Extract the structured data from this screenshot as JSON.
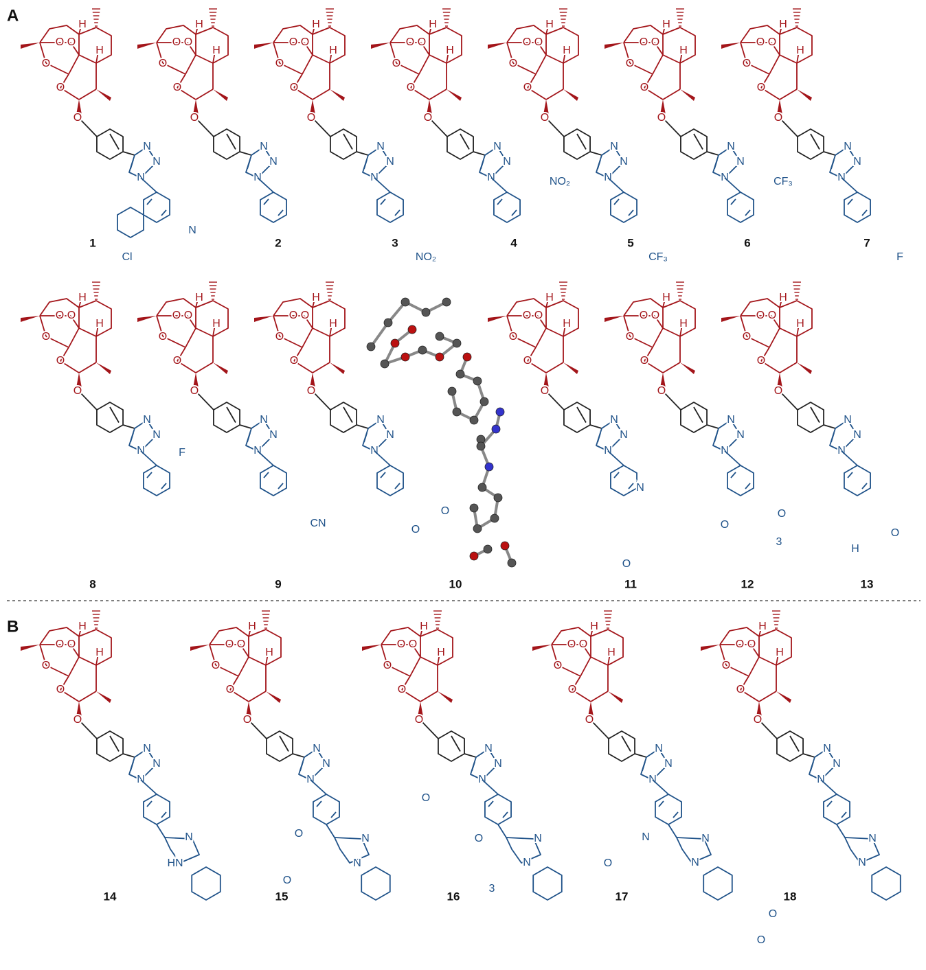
{
  "panels": [
    {
      "label": "A"
    },
    {
      "label": "B"
    }
  ],
  "scaffold": {
    "H": "H",
    "O": "O",
    "N": "N"
  },
  "compounds": [
    {
      "number": "1",
      "labels": [
        "Cl",
        "N"
      ]
    },
    {
      "number": "2",
      "labels": []
    },
    {
      "number": "3",
      "labels": [
        "NO₂"
      ]
    },
    {
      "number": "4",
      "labels": [
        "NO₂"
      ]
    },
    {
      "number": "5",
      "labels": [
        "CF₃"
      ]
    },
    {
      "number": "6",
      "labels": [
        "CF₃"
      ]
    },
    {
      "number": "7",
      "labels": [
        "F"
      ]
    },
    {
      "number": "8",
      "labels": [
        "F"
      ]
    },
    {
      "number": "9",
      "labels": [
        "CN"
      ]
    },
    {
      "number": "10",
      "labels": [
        "O",
        "O"
      ]
    },
    {
      "number": "11",
      "labels": [
        "N",
        "O"
      ]
    },
    {
      "number": "12",
      "labels": [
        "O",
        "O",
        "3"
      ]
    },
    {
      "number": "13",
      "labels": [
        "H",
        "O"
      ]
    },
    {
      "number": "14",
      "labels": [
        "N",
        "HN"
      ]
    },
    {
      "number": "15",
      "labels": [
        "N",
        "N",
        "O",
        "O"
      ]
    },
    {
      "number": "16",
      "labels": [
        "N",
        "N",
        "O",
        "O",
        "3"
      ]
    },
    {
      "number": "17",
      "labels": [
        "N",
        "N",
        "N",
        "O",
        "O",
        "O"
      ]
    },
    {
      "number": "18",
      "labels": [
        "N",
        "N"
      ]
    }
  ]
}
